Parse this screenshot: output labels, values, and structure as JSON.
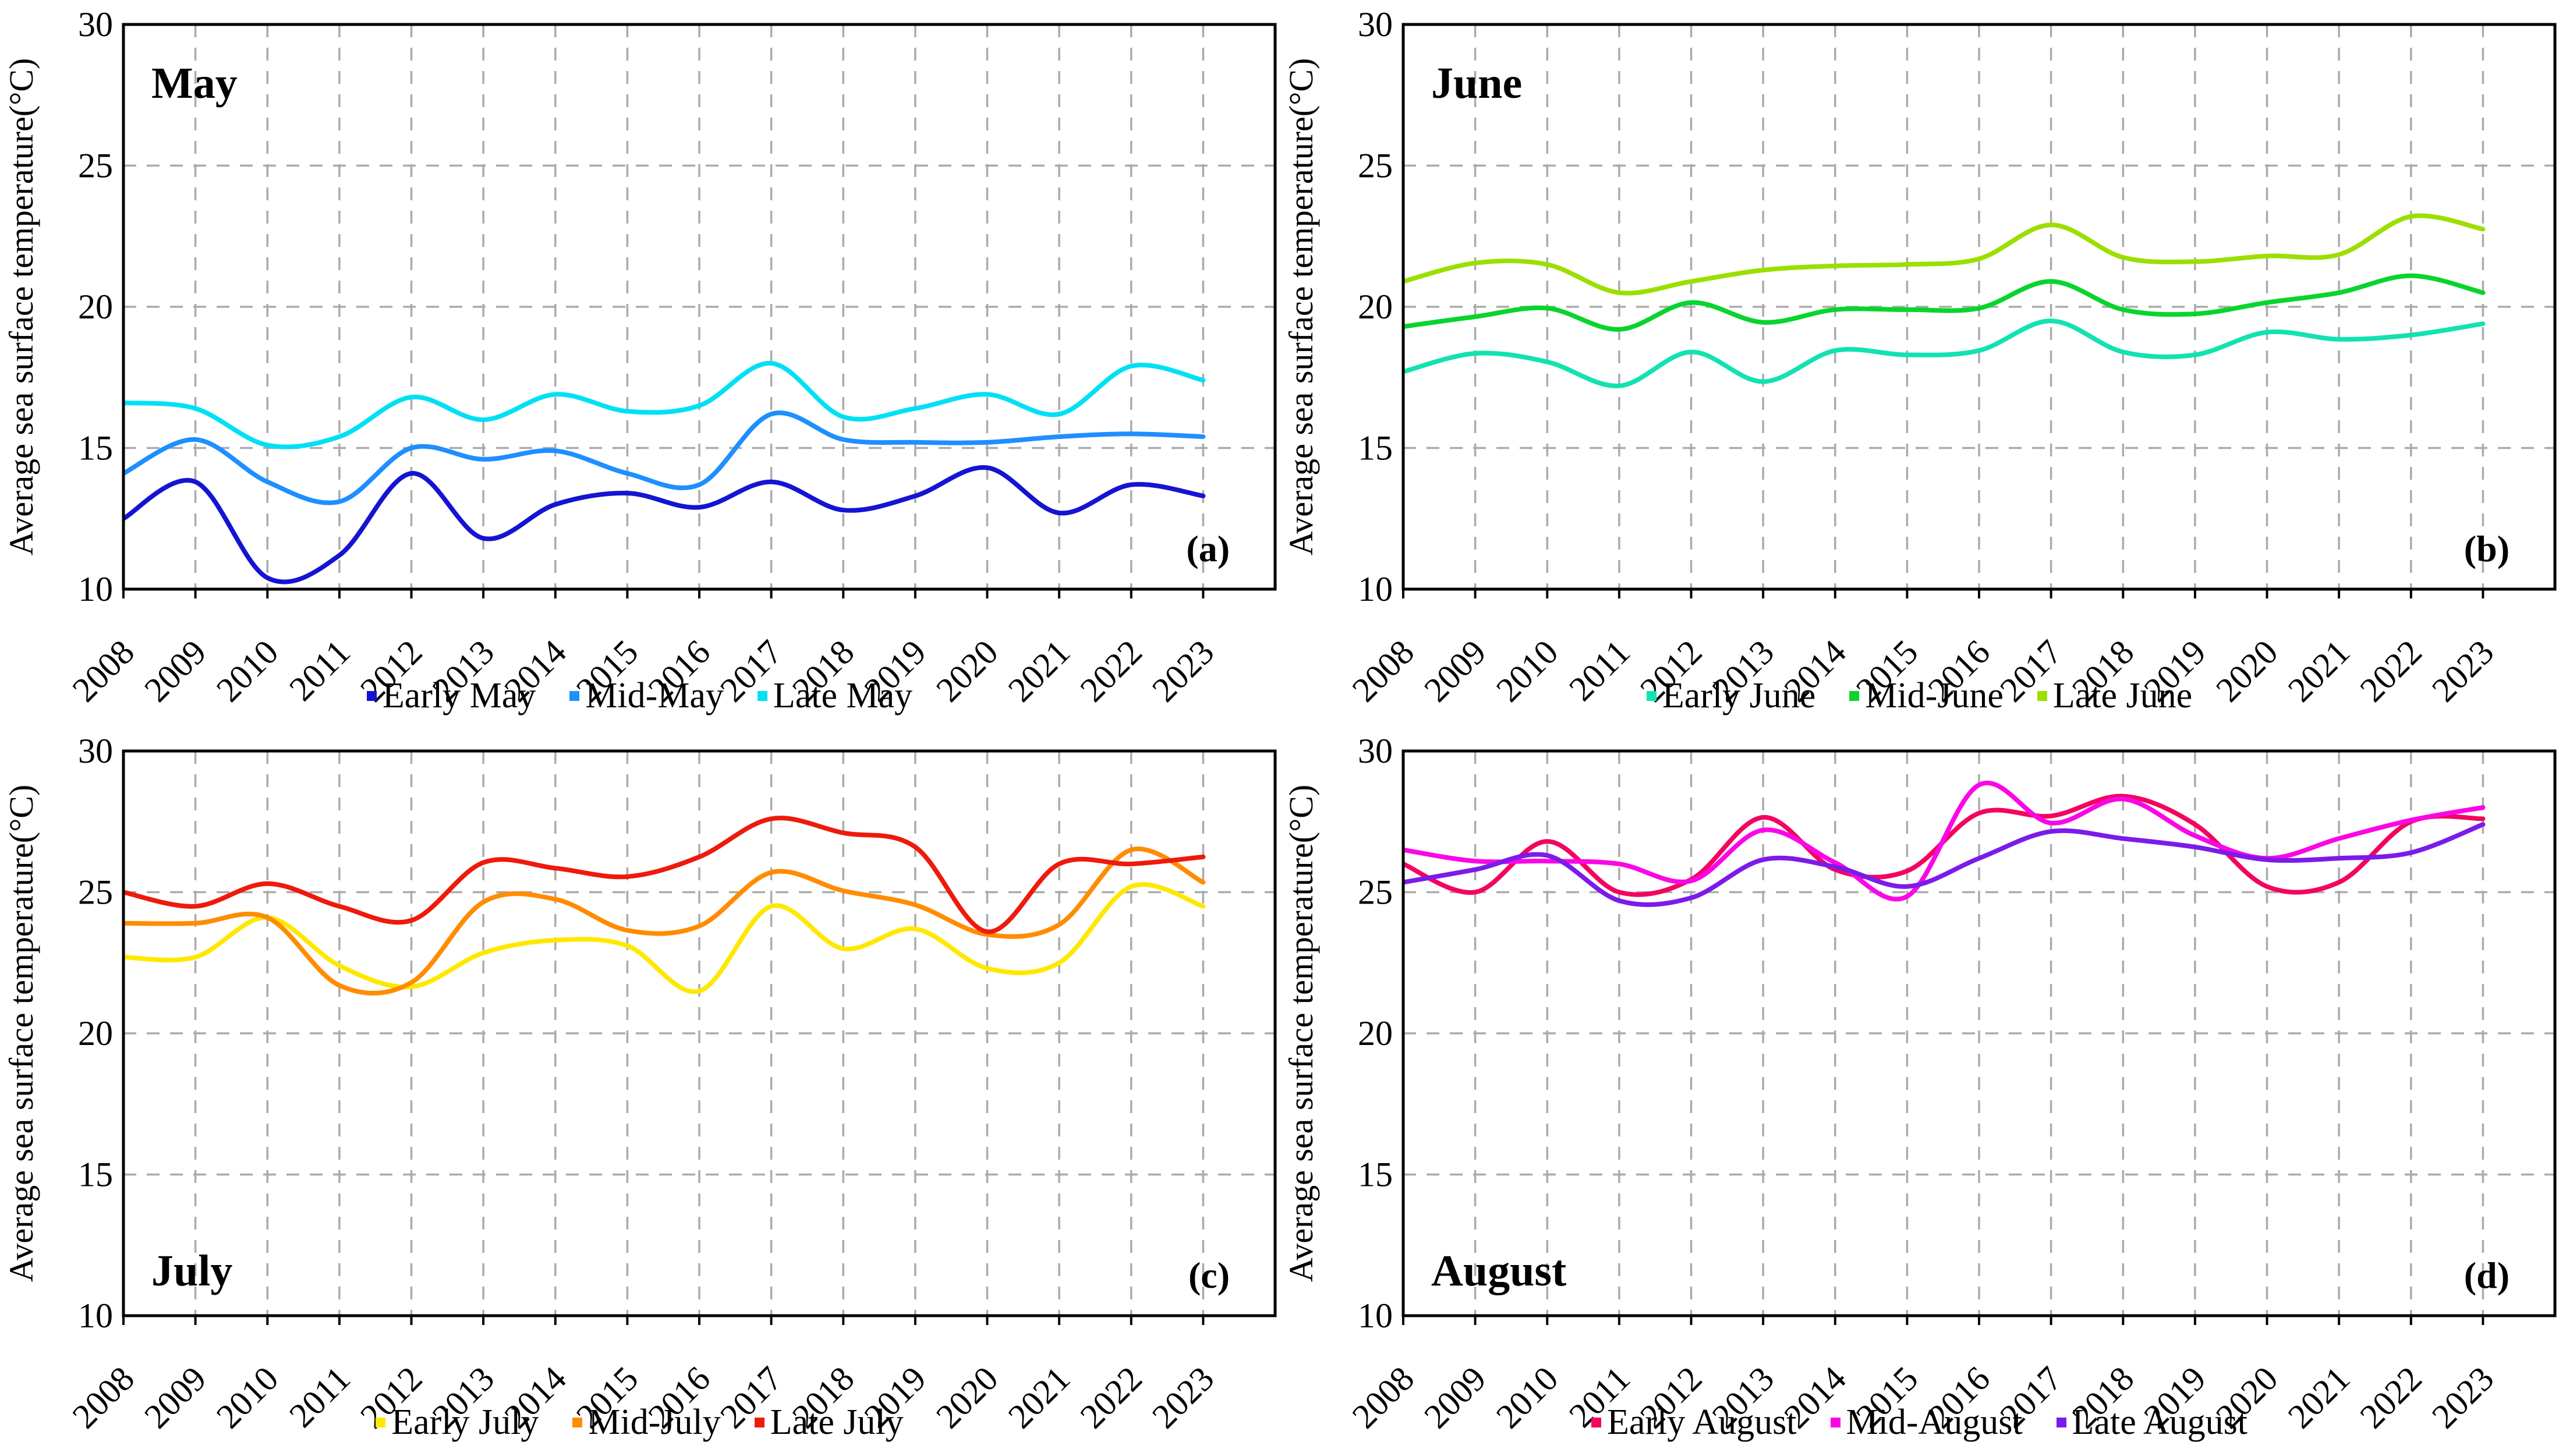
{
  "figure": {
    "ylabel": "Average sea surface temperature(°C)",
    "grid_color": "#ABABAB",
    "axis_color": "#000000",
    "background": "#ffffff"
  },
  "chart_data": [
    {
      "id": "a",
      "type": "line",
      "title": "May",
      "panel_label": "(a)",
      "title_position": "top-left",
      "xlabel": "",
      "ylabel": "Average sea surface temperature(°C)",
      "ylim": [
        10,
        30
      ],
      "yticks": [
        10,
        15,
        20,
        25,
        30
      ],
      "grid": true,
      "legend_position": "bottom-center",
      "categories": [
        "2008",
        "2009",
        "2010",
        "2011",
        "2012",
        "2013",
        "2014",
        "2015",
        "2016",
        "2017",
        "2018",
        "2019",
        "2020",
        "2021",
        "2022",
        "2023"
      ],
      "series": [
        {
          "name": "Early May",
          "color": "#1414D2",
          "values": [
            12.5,
            13.8,
            10.4,
            11.2,
            14.1,
            11.8,
            13.0,
            13.4,
            12.9,
            13.8,
            12.8,
            13.3,
            14.3,
            12.7,
            13.7,
            13.3
          ]
        },
        {
          "name": "Mid-May",
          "color": "#1E8FFF",
          "values": [
            14.1,
            15.3,
            13.8,
            13.1,
            15.0,
            14.6,
            14.9,
            14.1,
            13.7,
            16.2,
            15.3,
            15.2,
            15.2,
            15.4,
            15.5,
            15.4
          ]
        },
        {
          "name": "Late May",
          "color": "#00E0F5",
          "values": [
            16.6,
            16.4,
            15.1,
            15.4,
            16.8,
            16.0,
            16.9,
            16.3,
            16.5,
            18.0,
            16.1,
            16.4,
            16.9,
            16.2,
            17.9,
            17.4
          ]
        }
      ]
    },
    {
      "id": "b",
      "type": "line",
      "title": "June",
      "panel_label": "(b)",
      "title_position": "top-left",
      "xlabel": "",
      "ylabel": "Average sea surface temperature(°C)",
      "ylim": [
        10,
        30
      ],
      "yticks": [
        10,
        15,
        20,
        25,
        30
      ],
      "grid": true,
      "legend_position": "bottom-center",
      "categories": [
        "2008",
        "2009",
        "2010",
        "2011",
        "2012",
        "2013",
        "2014",
        "2015",
        "2016",
        "2017",
        "2018",
        "2019",
        "2020",
        "2021",
        "2022",
        "2023"
      ],
      "series": [
        {
          "name": "Early June",
          "color": "#12E2B0",
          "values": [
            17.7,
            18.35,
            18.05,
            17.2,
            18.4,
            17.35,
            18.45,
            18.3,
            18.45,
            19.5,
            18.4,
            18.3,
            19.1,
            18.85,
            19.0,
            19.4
          ]
        },
        {
          "name": "Mid-June",
          "color": "#09D42E",
          "values": [
            19.3,
            19.65,
            19.95,
            19.2,
            20.15,
            19.45,
            19.9,
            19.9,
            19.95,
            20.9,
            19.9,
            19.75,
            20.15,
            20.5,
            21.1,
            20.5
          ]
        },
        {
          "name": "Late June",
          "color": "#9BDF00",
          "values": [
            20.9,
            21.55,
            21.5,
            20.5,
            20.9,
            21.3,
            21.45,
            21.5,
            21.7,
            22.9,
            21.75,
            21.6,
            21.8,
            21.85,
            23.2,
            22.75
          ]
        }
      ]
    },
    {
      "id": "c",
      "type": "line",
      "title": "July",
      "panel_label": "(c)",
      "title_position": "bottom-left",
      "xlabel": "",
      "ylabel": "Average sea surface temperature(°C)",
      "ylim": [
        10,
        30
      ],
      "yticks": [
        10,
        15,
        20,
        25,
        30
      ],
      "grid": true,
      "legend_position": "bottom-center",
      "categories": [
        "2008",
        "2009",
        "2010",
        "2011",
        "2012",
        "2013",
        "2014",
        "2015",
        "2016",
        "2017",
        "2018",
        "2019",
        "2020",
        "2021",
        "2022",
        "2023"
      ],
      "series": [
        {
          "name": "Early July",
          "color": "#FFE800",
          "values": [
            22.7,
            22.7,
            24.1,
            22.4,
            21.65,
            22.85,
            23.3,
            23.1,
            21.5,
            24.5,
            23.0,
            23.7,
            22.3,
            22.5,
            25.2,
            24.5
          ]
        },
        {
          "name": "Mid-July",
          "color": "#FF8C00",
          "values": [
            23.9,
            23.9,
            24.1,
            21.7,
            21.8,
            24.65,
            24.75,
            23.65,
            23.8,
            25.7,
            25.05,
            24.55,
            23.5,
            23.85,
            26.5,
            25.35
          ]
        },
        {
          "name": "Late July",
          "color": "#EE1A0C",
          "values": [
            25.0,
            24.5,
            25.3,
            24.5,
            24.0,
            26.05,
            25.85,
            25.55,
            26.25,
            27.6,
            27.1,
            26.6,
            23.6,
            26.0,
            26.0,
            26.25
          ]
        }
      ]
    },
    {
      "id": "d",
      "type": "line",
      "title": "August",
      "panel_label": "(d)",
      "title_position": "bottom-left",
      "xlabel": "",
      "ylabel": "Average sea surface temperature(°C)",
      "ylim": [
        10,
        30
      ],
      "yticks": [
        10,
        15,
        20,
        25,
        30
      ],
      "grid": true,
      "legend_position": "bottom-center",
      "categories": [
        "2008",
        "2009",
        "2010",
        "2011",
        "2012",
        "2013",
        "2014",
        "2015",
        "2016",
        "2017",
        "2018",
        "2019",
        "2020",
        "2021",
        "2022",
        "2023"
      ],
      "series": [
        {
          "name": "Early August",
          "color": "#F20560",
          "values": [
            26.0,
            25.0,
            26.8,
            25.0,
            25.45,
            27.65,
            25.8,
            25.75,
            27.8,
            27.7,
            28.4,
            27.4,
            25.2,
            25.35,
            27.5,
            27.6
          ]
        },
        {
          "name": "Mid-August",
          "color": "#FA07E6",
          "values": [
            26.5,
            26.1,
            26.1,
            26.0,
            25.4,
            27.2,
            26.05,
            24.85,
            28.8,
            27.45,
            28.3,
            27.0,
            26.2,
            26.9,
            27.55,
            28.0
          ]
        },
        {
          "name": "Late August",
          "color": "#7B1BE9",
          "values": [
            25.35,
            25.8,
            26.3,
            24.7,
            24.8,
            26.15,
            25.9,
            25.2,
            26.2,
            27.15,
            26.9,
            26.6,
            26.15,
            26.2,
            26.4,
            27.4
          ]
        }
      ]
    }
  ]
}
